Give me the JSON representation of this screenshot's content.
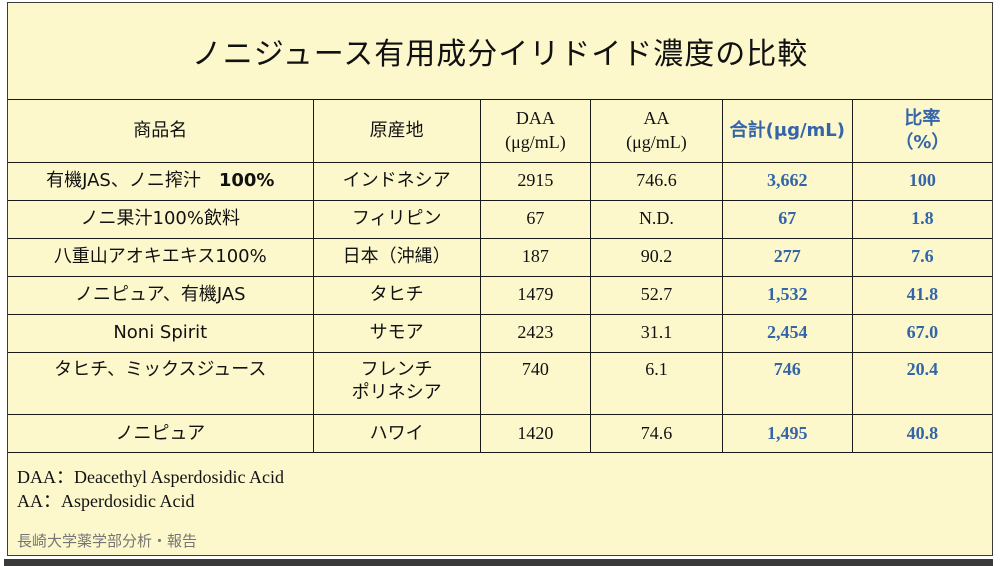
{
  "page": {
    "title": "ノニジュース有用成分イリドイド濃度の比較",
    "background_color": "#FCF8CC",
    "accent_blue": "#3465A8",
    "text_black": "#111111",
    "credit_gray": "#757575"
  },
  "table": {
    "columns": [
      {
        "id": "name",
        "lines": [
          "商品名"
        ],
        "color": "black",
        "serif": false
      },
      {
        "id": "origin",
        "lines": [
          "原産地"
        ],
        "color": "black",
        "serif": false
      },
      {
        "id": "daa",
        "lines": [
          "DAA",
          "(μg/mL)"
        ],
        "color": "black",
        "serif": true
      },
      {
        "id": "aa",
        "lines": [
          "AA",
          "(μg/mL)"
        ],
        "color": "black",
        "serif": true
      },
      {
        "id": "total",
        "lines": [
          "合計(μg/mL)"
        ],
        "color": "blue",
        "serif": false
      },
      {
        "id": "ratio",
        "lines": [
          "比率",
          "（%）"
        ],
        "color": "blue",
        "serif": false
      }
    ],
    "rows": [
      {
        "name": "有機JAS、ノニ搾汁　",
        "name_suffix": "100%",
        "origin": "インドネシア",
        "daa": "2915",
        "aa": "746.6",
        "total": "3,662",
        "ratio": "100",
        "tall": false
      },
      {
        "name": "ノニ果汁100%飲料",
        "name_suffix": "",
        "origin": "フィリピン",
        "daa": "67",
        "aa": "N.D.",
        "total": "67",
        "ratio": "1.8",
        "tall": false
      },
      {
        "name": "八重山アオキエキス100%",
        "name_suffix": "",
        "origin": "日本（沖縄）",
        "daa": "187",
        "aa": "90.2",
        "total": "277",
        "ratio": "7.6",
        "tall": false
      },
      {
        "name": "ノニピュア、有機JAS",
        "name_suffix": "",
        "origin": "タヒチ",
        "daa": "1479",
        "aa": "52.7",
        "total": "1,532",
        "ratio": "41.8",
        "tall": false
      },
      {
        "name": "Noni Spirit",
        "name_suffix": "",
        "origin": "サモア",
        "daa": "2423",
        "aa": "31.1",
        "total": "2,454",
        "ratio": "67.0",
        "tall": false
      },
      {
        "name": "タヒチ、ミックスジュース",
        "name_suffix": "",
        "origin": "フレンチ\nポリネシア",
        "daa": "740",
        "aa": "6.1",
        "total": "746",
        "ratio": "20.4",
        "tall": true
      },
      {
        "name": "ノニピュア",
        "name_suffix": "",
        "origin": "ハワイ",
        "daa": "1420",
        "aa": "74.6",
        "total": "1,495",
        "ratio": "40.8",
        "tall": false
      }
    ]
  },
  "footnotes": {
    "daa": "DAA：Deacethyl Asperdosidic Acid",
    "aa": "AA：Asperdosidic Acid",
    "credit": "長崎大学薬学部分析・報告"
  }
}
